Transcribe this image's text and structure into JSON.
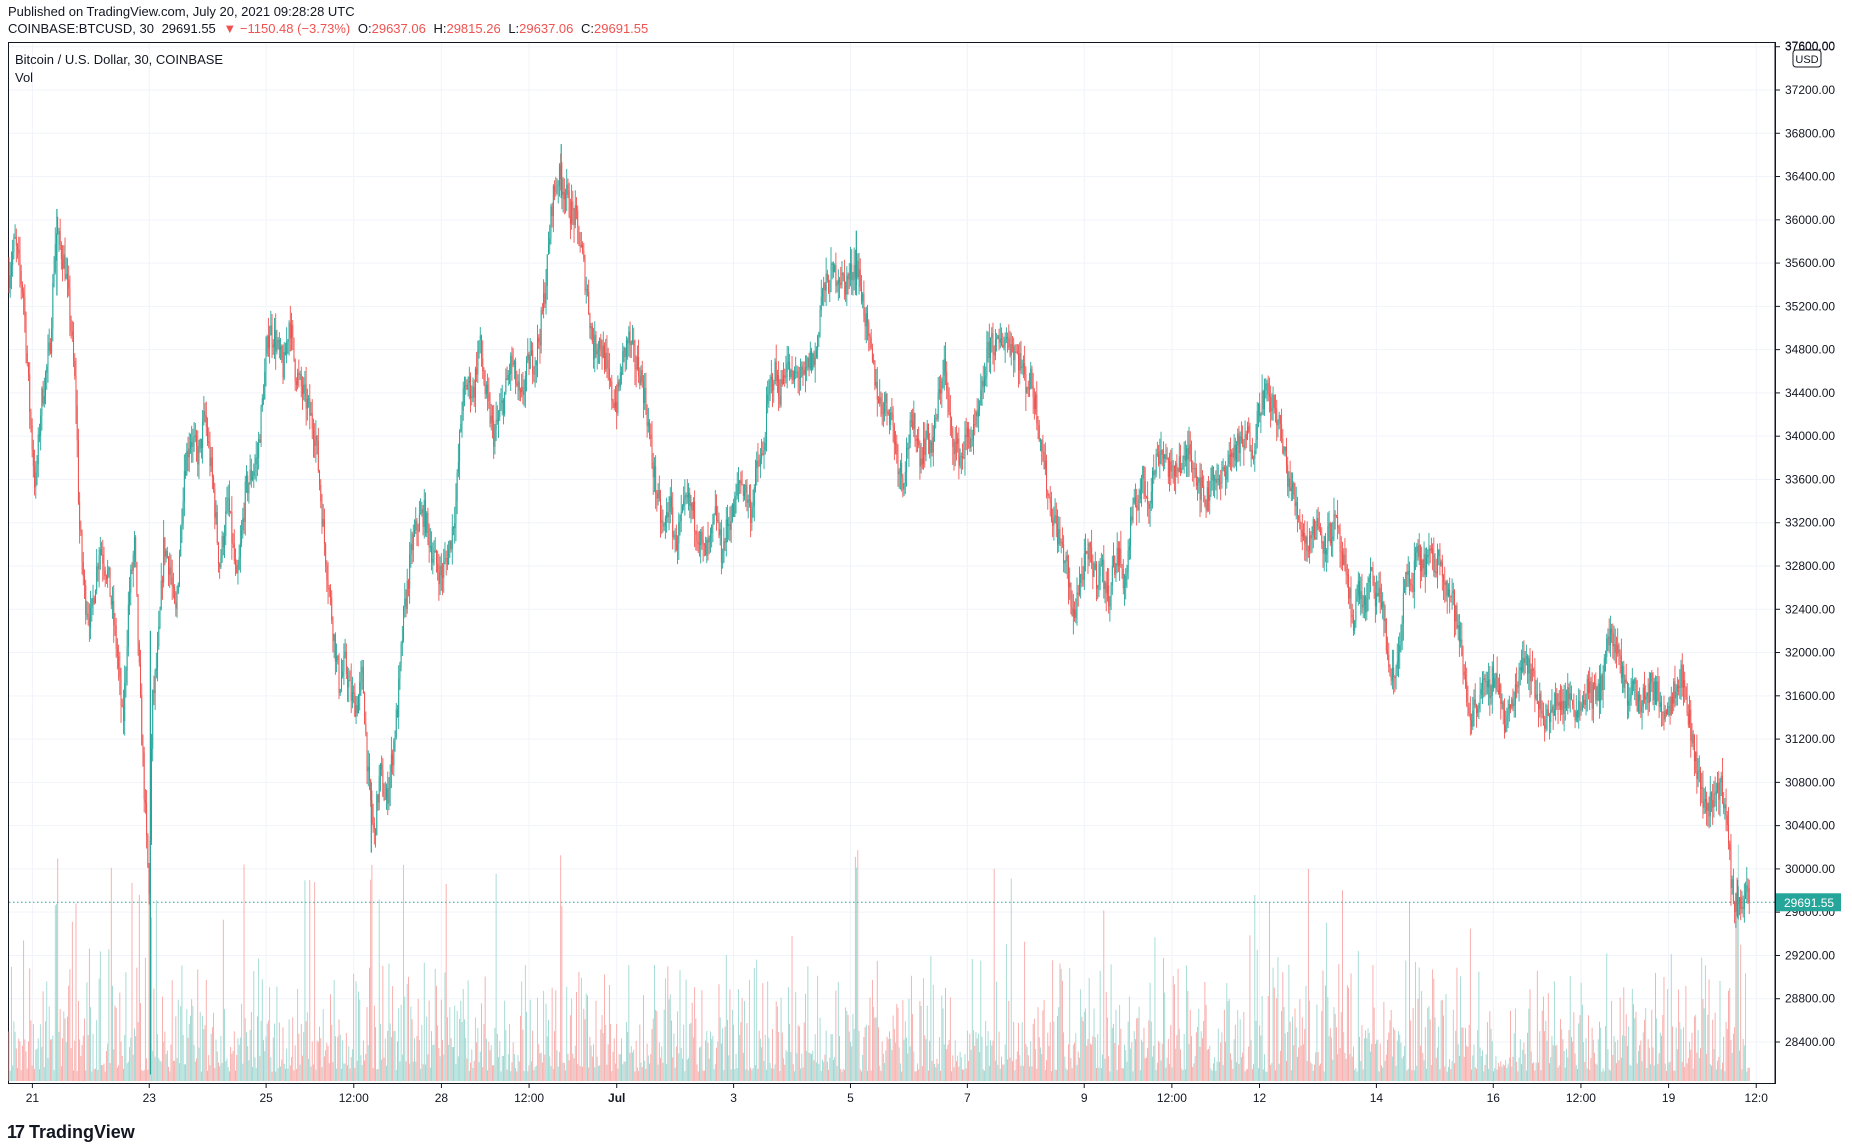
{
  "header": {
    "published": "Published on TradingView.com, July 20, 2021 09:28:28 UTC",
    "symbol": "COINBASE:BTCUSD, 30",
    "last": "29691.55",
    "change": "▼ −1150.48 (−3.73%)",
    "o_label": "O:",
    "o": "29637.06",
    "h_label": "H:",
    "h": "29815.26",
    "l_label": "L:",
    "l": "29637.06",
    "c_label": "C:",
    "c": "29691.55"
  },
  "legend": {
    "title": "Bitcoin / U.S. Dollar, 30, COINBASE",
    "vol": "Vol"
  },
  "brand": {
    "logo": "17",
    "name": "TradingView"
  },
  "colors": {
    "up": "#26a69a",
    "down": "#ef5350",
    "vol_up": "#9fd8d2",
    "vol_down": "#f7a9a7",
    "accent": "#26a69a"
  },
  "chart_data": {
    "type": "candlestick",
    "title": "Bitcoin / U.S. Dollar, 30, COINBASE",
    "currency": "USD",
    "last_price": 29691.55,
    "ylim": [
      28000,
      37600
    ],
    "y_ticks": [
      28400,
      28800,
      29200,
      29600,
      30000,
      30400,
      30800,
      31200,
      31600,
      32000,
      32400,
      32800,
      33200,
      33600,
      34000,
      34400,
      34800,
      35200,
      35600,
      36000,
      36400,
      36800,
      37200,
      37600
    ],
    "x_ticks": [
      {
        "label": "21",
        "t": 0.4,
        "bold": false
      },
      {
        "label": "23",
        "t": 2.4,
        "bold": false
      },
      {
        "label": "25",
        "t": 4.4,
        "bold": false
      },
      {
        "label": "12:00",
        "t": 5.9,
        "bold": false
      },
      {
        "label": "28",
        "t": 7.4,
        "bold": false
      },
      {
        "label": "12:00",
        "t": 8.9,
        "bold": false
      },
      {
        "label": "Jul",
        "t": 10.4,
        "bold": true
      },
      {
        "label": "3",
        "t": 12.4,
        "bold": false
      },
      {
        "label": "5",
        "t": 14.4,
        "bold": false
      },
      {
        "label": "7",
        "t": 16.4,
        "bold": false
      },
      {
        "label": "9",
        "t": 18.4,
        "bold": false
      },
      {
        "label": "12:00",
        "t": 19.9,
        "bold": false
      },
      {
        "label": "12",
        "t": 21.4,
        "bold": false
      },
      {
        "label": "14",
        "t": 23.4,
        "bold": false
      },
      {
        "label": "16",
        "t": 25.4,
        "bold": false
      },
      {
        "label": "12:00",
        "t": 26.9,
        "bold": false
      },
      {
        "label": "19",
        "t": 28.4,
        "bold": false
      },
      {
        "label": "12:0",
        "t": 29.9,
        "bold": false
      }
    ],
    "t_range": [
      0,
      30.05
    ],
    "price_path": [
      [
        0.0,
        35500
      ],
      [
        0.1,
        35800
      ],
      [
        0.25,
        35300
      ],
      [
        0.35,
        34300
      ],
      [
        0.45,
        33500
      ],
      [
        0.55,
        34300
      ],
      [
        0.7,
        34800
      ],
      [
        0.8,
        35900
      ],
      [
        0.95,
        35600
      ],
      [
        1.05,
        35100
      ],
      [
        1.15,
        34300
      ],
      [
        1.2,
        33200
      ],
      [
        1.3,
        32500
      ],
      [
        1.4,
        32300
      ],
      [
        1.55,
        33000
      ],
      [
        1.7,
        32700
      ],
      [
        1.85,
        32000
      ],
      [
        1.95,
        31300
      ],
      [
        2.05,
        32500
      ],
      [
        2.15,
        33000
      ],
      [
        2.25,
        31500
      ],
      [
        2.35,
        30300
      ],
      [
        2.4,
        29700
      ],
      [
        2.45,
        31500
      ],
      [
        2.55,
        32000
      ],
      [
        2.65,
        33000
      ],
      [
        2.75,
        32800
      ],
      [
        2.85,
        32300
      ],
      [
        3.0,
        33700
      ],
      [
        3.1,
        34000
      ],
      [
        3.25,
        33800
      ],
      [
        3.35,
        34200
      ],
      [
        3.5,
        33500
      ],
      [
        3.6,
        32800
      ],
      [
        3.75,
        33400
      ],
      [
        3.9,
        32600
      ],
      [
        4.05,
        33500
      ],
      [
        4.25,
        33800
      ],
      [
        4.45,
        35000
      ],
      [
        4.55,
        34900
      ],
      [
        4.7,
        34600
      ],
      [
        4.8,
        35100
      ],
      [
        4.9,
        34600
      ],
      [
        5.1,
        34300
      ],
      [
        5.25,
        34000
      ],
      [
        5.4,
        33000
      ],
      [
        5.55,
        32200
      ],
      [
        5.65,
        31700
      ],
      [
        5.75,
        31900
      ],
      [
        5.85,
        31600
      ],
      [
        5.95,
        31500
      ],
      [
        6.05,
        31800
      ],
      [
        6.15,
        30800
      ],
      [
        6.25,
        30300
      ],
      [
        6.35,
        30900
      ],
      [
        6.45,
        30600
      ],
      [
        6.55,
        31000
      ],
      [
        6.65,
        31500
      ],
      [
        6.75,
        32300
      ],
      [
        6.9,
        33000
      ],
      [
        7.0,
        33200
      ],
      [
        7.1,
        33300
      ],
      [
        7.25,
        32900
      ],
      [
        7.4,
        32700
      ],
      [
        7.55,
        33000
      ],
      [
        7.65,
        33400
      ],
      [
        7.75,
        34300
      ],
      [
        7.85,
        34500
      ],
      [
        7.95,
        34400
      ],
      [
        8.05,
        34900
      ],
      [
        8.15,
        34400
      ],
      [
        8.3,
        34000
      ],
      [
        8.45,
        34300
      ],
      [
        8.6,
        34700
      ],
      [
        8.75,
        34300
      ],
      [
        8.9,
        34700
      ],
      [
        9.0,
        34700
      ],
      [
        9.1,
        35000
      ],
      [
        9.2,
        35500
      ],
      [
        9.3,
        36200
      ],
      [
        9.4,
        36400
      ],
      [
        9.5,
        36300
      ],
      [
        9.6,
        36100
      ],
      [
        9.7,
        36000
      ],
      [
        9.8,
        35700
      ],
      [
        9.9,
        35300
      ],
      [
        10.0,
        34800
      ],
      [
        10.1,
        34900
      ],
      [
        10.2,
        34700
      ],
      [
        10.3,
        34400
      ],
      [
        10.4,
        34300
      ],
      [
        10.5,
        34700
      ],
      [
        10.6,
        34900
      ],
      [
        10.7,
        34700
      ],
      [
        10.8,
        34600
      ],
      [
        10.9,
        34300
      ],
      [
        11.0,
        33800
      ],
      [
        11.1,
        33400
      ],
      [
        11.2,
        33100
      ],
      [
        11.3,
        33400
      ],
      [
        11.4,
        33000
      ],
      [
        11.5,
        33200
      ],
      [
        11.6,
        33400
      ],
      [
        11.7,
        33300
      ],
      [
        11.8,
        33100
      ],
      [
        11.9,
        32900
      ],
      [
        12.0,
        33000
      ],
      [
        12.1,
        33300
      ],
      [
        12.2,
        32900
      ],
      [
        12.3,
        33200
      ],
      [
        12.4,
        33300
      ],
      [
        12.5,
        33600
      ],
      [
        12.6,
        33500
      ],
      [
        12.7,
        33300
      ],
      [
        12.8,
        33700
      ],
      [
        12.9,
        33800
      ],
      [
        13.0,
        34400
      ],
      [
        13.1,
        34600
      ],
      [
        13.2,
        34400
      ],
      [
        13.3,
        34700
      ],
      [
        13.4,
        34500
      ],
      [
        13.5,
        34600
      ],
      [
        13.6,
        34500
      ],
      [
        13.7,
        34700
      ],
      [
        13.8,
        34700
      ],
      [
        13.9,
        35300
      ],
      [
        14.0,
        35400
      ],
      [
        14.1,
        35500
      ],
      [
        14.2,
        35500
      ],
      [
        14.3,
        35400
      ],
      [
        14.4,
        35500
      ],
      [
        14.5,
        35600
      ],
      [
        14.6,
        35300
      ],
      [
        14.7,
        34900
      ],
      [
        14.8,
        34600
      ],
      [
        14.9,
        34300
      ],
      [
        15.0,
        34300
      ],
      [
        15.1,
        34200
      ],
      [
        15.2,
        33800
      ],
      [
        15.3,
        33600
      ],
      [
        15.4,
        34000
      ],
      [
        15.5,
        34100
      ],
      [
        15.6,
        33800
      ],
      [
        15.7,
        34000
      ],
      [
        15.8,
        33900
      ],
      [
        15.9,
        34300
      ],
      [
        16.0,
        34700
      ],
      [
        16.1,
        34100
      ],
      [
        16.2,
        33900
      ],
      [
        16.3,
        33800
      ],
      [
        16.4,
        34000
      ],
      [
        16.5,
        34000
      ],
      [
        16.6,
        34200
      ],
      [
        16.7,
        34600
      ],
      [
        16.8,
        34900
      ],
      [
        16.9,
        34800
      ],
      [
        17.0,
        34900
      ],
      [
        17.1,
        34900
      ],
      [
        17.2,
        34800
      ],
      [
        17.3,
        34700
      ],
      [
        17.4,
        34500
      ],
      [
        17.5,
        34500
      ],
      [
        17.6,
        34200
      ],
      [
        17.7,
        33800
      ],
      [
        17.8,
        33400
      ],
      [
        17.9,
        33200
      ],
      [
        18.0,
        33000
      ],
      [
        18.1,
        32800
      ],
      [
        18.2,
        32300
      ],
      [
        18.3,
        32600
      ],
      [
        18.4,
        32800
      ],
      [
        18.5,
        32900
      ],
      [
        18.6,
        32700
      ],
      [
        18.7,
        32800
      ],
      [
        18.8,
        32500
      ],
      [
        18.9,
        32800
      ],
      [
        19.0,
        32900
      ],
      [
        19.1,
        32600
      ],
      [
        19.2,
        33200
      ],
      [
        19.3,
        33400
      ],
      [
        19.4,
        33600
      ],
      [
        19.5,
        33400
      ],
      [
        19.6,
        33700
      ],
      [
        19.7,
        33900
      ],
      [
        19.8,
        33800
      ],
      [
        19.9,
        33600
      ],
      [
        20.0,
        33800
      ],
      [
        20.1,
        33700
      ],
      [
        20.2,
        33900
      ],
      [
        20.3,
        33700
      ],
      [
        20.4,
        33500
      ],
      [
        20.5,
        33400
      ],
      [
        20.6,
        33700
      ],
      [
        20.7,
        33500
      ],
      [
        20.8,
        33700
      ],
      [
        20.9,
        33800
      ],
      [
        21.0,
        33900
      ],
      [
        21.1,
        33900
      ],
      [
        21.2,
        34000
      ],
      [
        21.3,
        33900
      ],
      [
        21.4,
        34300
      ],
      [
        21.5,
        34400
      ],
      [
        21.6,
        34300
      ],
      [
        21.7,
        34200
      ],
      [
        21.8,
        33900
      ],
      [
        21.9,
        33600
      ],
      [
        22.0,
        33400
      ],
      [
        22.1,
        33200
      ],
      [
        22.2,
        33000
      ],
      [
        22.3,
        33100
      ],
      [
        22.4,
        33200
      ],
      [
        22.5,
        33000
      ],
      [
        22.6,
        33100
      ],
      [
        22.7,
        33200
      ],
      [
        22.8,
        32900
      ],
      [
        22.9,
        32600
      ],
      [
        23.0,
        32300
      ],
      [
        23.1,
        32600
      ],
      [
        23.2,
        32400
      ],
      [
        23.3,
        32700
      ],
      [
        23.4,
        32500
      ],
      [
        23.5,
        32500
      ],
      [
        23.6,
        31900
      ],
      [
        23.7,
        31700
      ],
      [
        23.8,
        32100
      ],
      [
        23.9,
        32700
      ],
      [
        24.0,
        32600
      ],
      [
        24.1,
        32900
      ],
      [
        24.2,
        32800
      ],
      [
        24.3,
        32900
      ],
      [
        24.4,
        32800
      ],
      [
        24.5,
        32900
      ],
      [
        24.6,
        32600
      ],
      [
        24.7,
        32500
      ],
      [
        24.8,
        32200
      ],
      [
        24.9,
        31800
      ],
      [
        25.0,
        31400
      ],
      [
        25.1,
        31500
      ],
      [
        25.2,
        31700
      ],
      [
        25.3,
        31600
      ],
      [
        25.4,
        31800
      ],
      [
        25.5,
        31700
      ],
      [
        25.6,
        31300
      ],
      [
        25.7,
        31500
      ],
      [
        25.8,
        31700
      ],
      [
        25.9,
        32000
      ],
      [
        26.0,
        31900
      ],
      [
        26.1,
        31700
      ],
      [
        26.2,
        31500
      ],
      [
        26.3,
        31400
      ],
      [
        26.4,
        31400
      ],
      [
        26.5,
        31600
      ],
      [
        26.6,
        31500
      ],
      [
        26.7,
        31600
      ],
      [
        26.8,
        31500
      ],
      [
        26.9,
        31500
      ],
      [
        27.0,
        31700
      ],
      [
        27.1,
        31600
      ],
      [
        27.2,
        31600
      ],
      [
        27.3,
        31900
      ],
      [
        27.4,
        32200
      ],
      [
        27.5,
        32000
      ],
      [
        27.6,
        31800
      ],
      [
        27.7,
        31600
      ],
      [
        27.8,
        31700
      ],
      [
        27.9,
        31500
      ],
      [
        28.0,
        31600
      ],
      [
        28.1,
        31700
      ],
      [
        28.2,
        31600
      ],
      [
        28.3,
        31500
      ],
      [
        28.4,
        31500
      ],
      [
        28.5,
        31700
      ],
      [
        28.6,
        31800
      ],
      [
        28.7,
        31600
      ],
      [
        28.8,
        31200
      ],
      [
        28.9,
        30900
      ],
      [
        29.0,
        30600
      ],
      [
        29.1,
        30600
      ],
      [
        29.2,
        30700
      ],
      [
        29.3,
        30800
      ],
      [
        29.4,
        30400
      ],
      [
        29.5,
        29700
      ],
      [
        29.6,
        29700
      ],
      [
        29.7,
        29750
      ],
      [
        29.78,
        29690
      ]
    ],
    "markers": [
      {
        "t": 2.42,
        "low": 28100,
        "high": 32200
      },
      {
        "t": 0.82,
        "low": 35300,
        "high": 36100
      },
      {
        "t": 6.2,
        "low": 30150,
        "high": 30800
      },
      {
        "t": 9.45,
        "low": 36200,
        "high": 36700
      },
      {
        "t": 14.5,
        "low": 35300,
        "high": 35900
      },
      {
        "t": 29.58,
        "low": 29550,
        "high": 29900
      }
    ],
    "volume_max": 4000
  }
}
